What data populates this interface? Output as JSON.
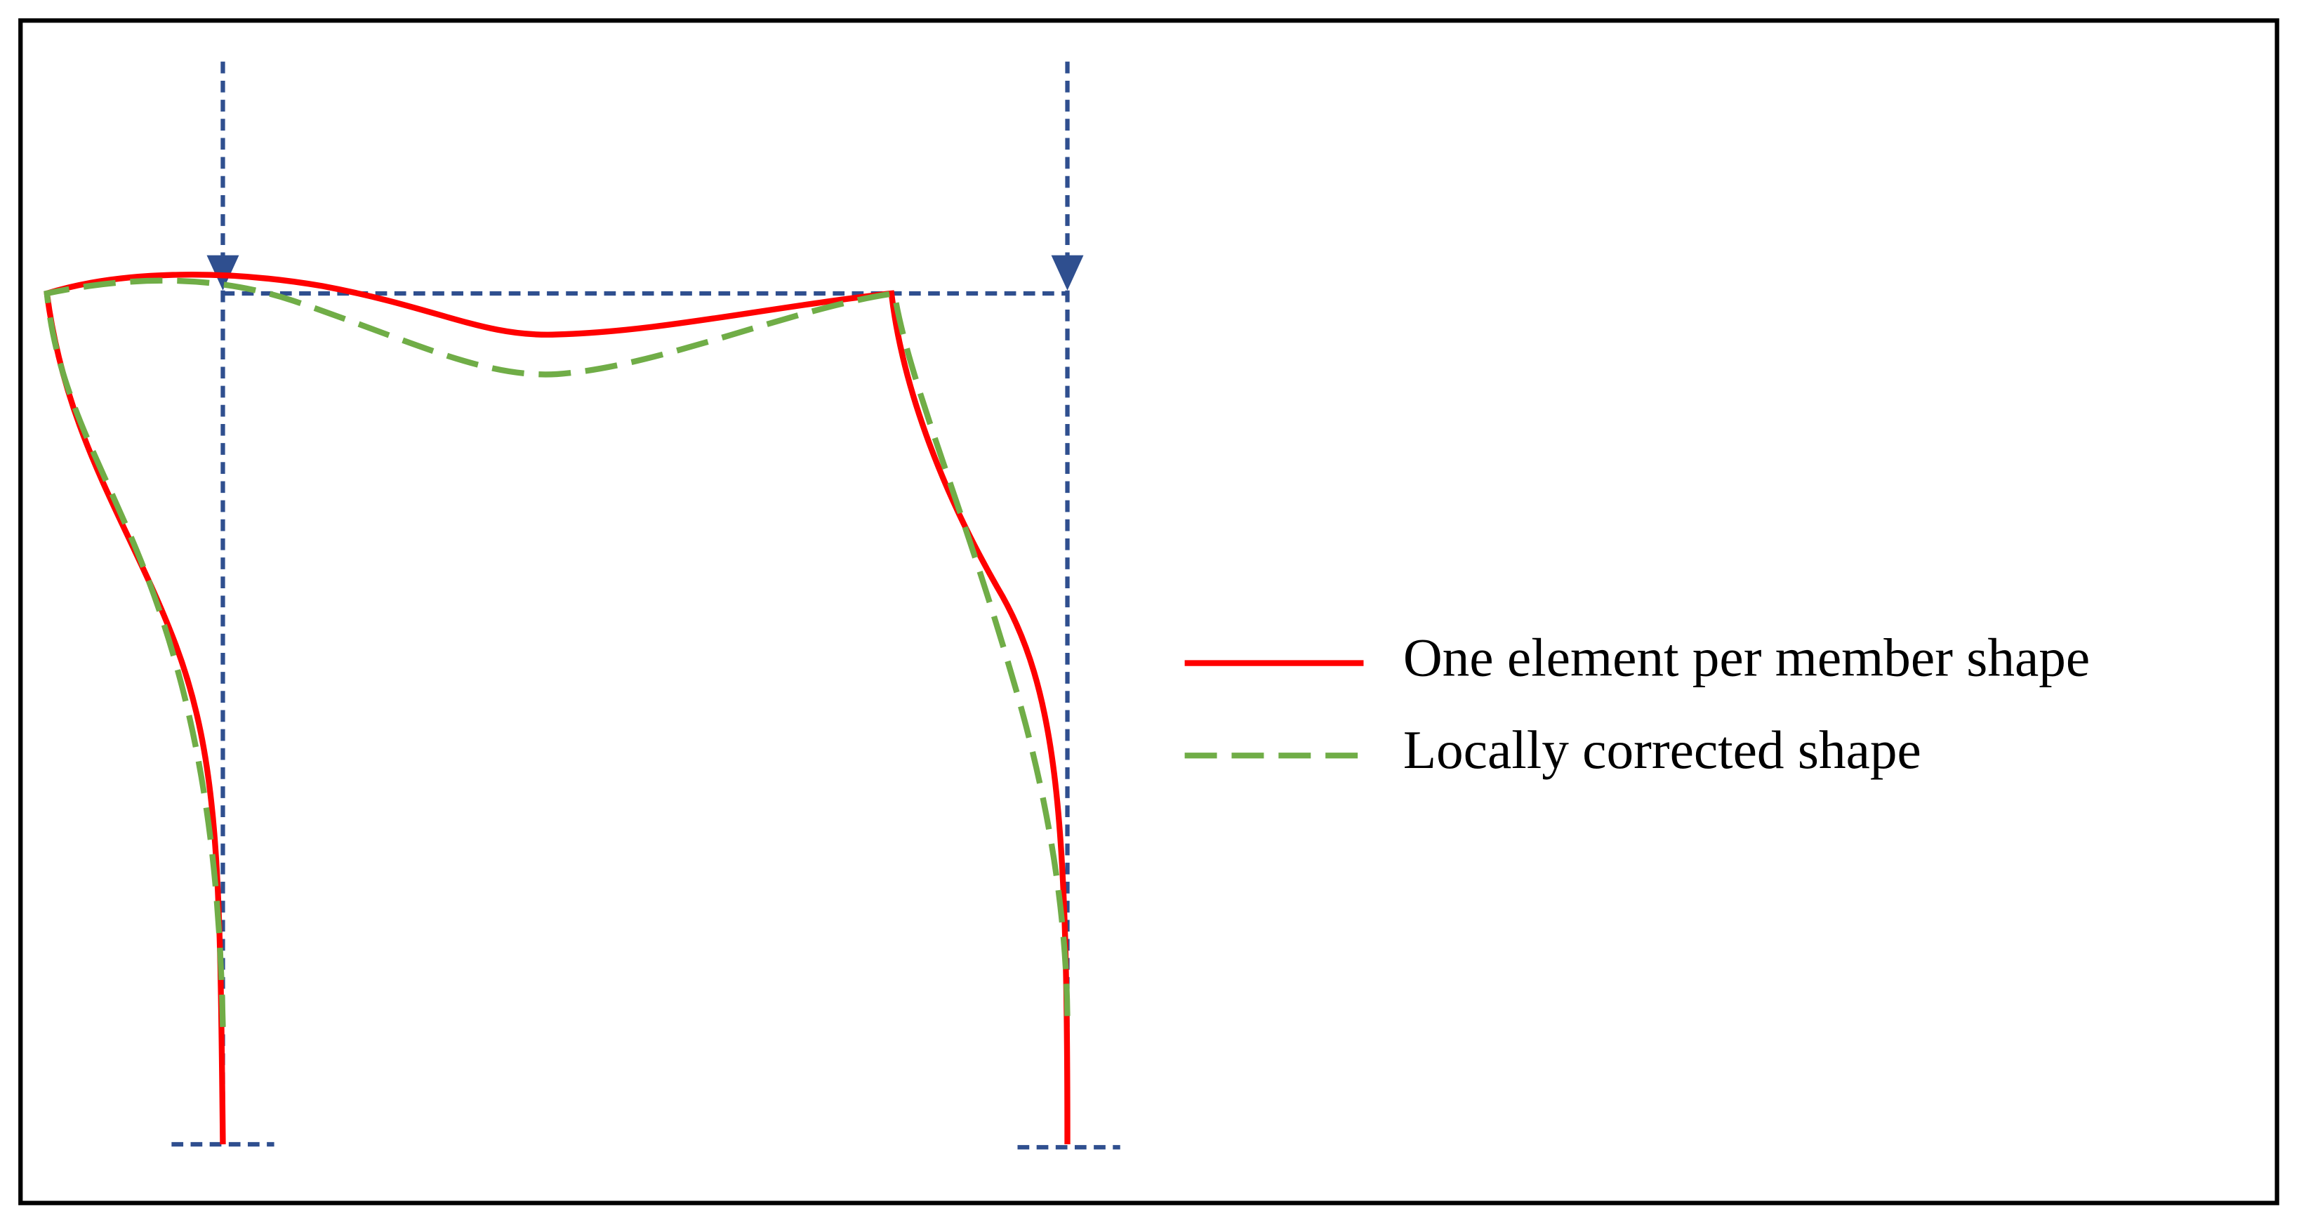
{
  "legend": [
    {
      "label": "One element per member shape"
    },
    {
      "label": "Locally corrected shape"
    }
  ]
}
